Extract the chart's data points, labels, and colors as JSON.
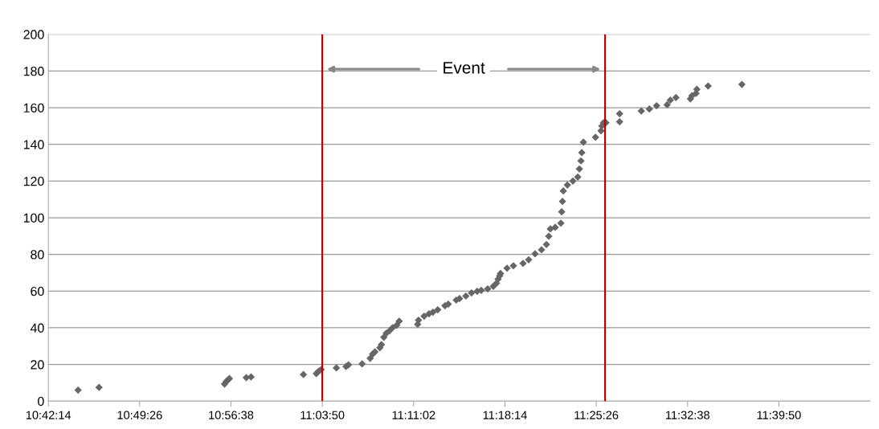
{
  "chart_data": {
    "type": "scatter",
    "marker": "diamond",
    "grid": "y",
    "legend": false,
    "xlim": [
      10.7039,
      11.7839
    ],
    "xticks": [
      {
        "value": 10.7039,
        "label": "10:42:14"
      },
      {
        "value": 10.8239,
        "label": "10:49:26"
      },
      {
        "value": 10.9439,
        "label": "10:56:38"
      },
      {
        "value": 11.0639,
        "label": "11:03:50"
      },
      {
        "value": 11.1839,
        "label": "11:11:02"
      },
      {
        "value": 11.3039,
        "label": "11:18:14"
      },
      {
        "value": 11.4239,
        "label": "11:25:26"
      },
      {
        "value": 11.5439,
        "label": "11:32:38"
      },
      {
        "value": 11.6639,
        "label": "11:39:50"
      }
    ],
    "ylim": [
      0,
      200
    ],
    "yticks": [
      0,
      20,
      40,
      60,
      80,
      100,
      120,
      140,
      160,
      180,
      200
    ],
    "ref_lines": [
      {
        "axis": "x",
        "value": 11.0639,
        "color": "#c00000"
      },
      {
        "axis": "x",
        "value": 11.4355,
        "color": "#c00000"
      }
    ],
    "annotations": [
      "Event"
    ],
    "series": [
      {
        "color": "#666666",
        "x": [
          10.743,
          10.7705,
          10.9354,
          10.9376,
          10.9397,
          10.9418,
          10.964,
          10.9703,
          11.0391,
          11.056,
          11.0591,
          11.0623,
          11.0824,
          11.0951,
          11.0983,
          11.1162,
          11.1268,
          11.13,
          11.1331,
          11.1395,
          11.1416,
          11.1448,
          11.148,
          11.1522,
          11.1564,
          11.1617,
          11.1649,
          11.1892,
          11.1903,
          11.1977,
          11.204,
          11.2093,
          11.2156,
          11.2251,
          11.2294,
          11.2399,
          11.2442,
          11.2526,
          11.26,
          11.2674,
          11.2727,
          11.2812,
          11.2886,
          11.2928,
          11.2949,
          11.297,
          11.2981,
          11.3066,
          11.315,
          11.3277,
          11.3351,
          11.3435,
          11.352,
          11.3584,
          11.3615,
          11.3636,
          11.37,
          11.3774,
          11.3785,
          11.3795,
          11.3806,
          11.3859,
          11.3932,
          11.3996,
          11.4017,
          11.4038,
          11.4049,
          11.407,
          11.4229,
          11.4302,
          11.4313,
          11.4334,
          11.4366,
          11.4546,
          11.4546,
          11.4831,
          11.4937,
          11.5032,
          11.517,
          11.5212,
          11.5286,
          11.5476,
          11.5497,
          11.555,
          11.5561,
          11.5709,
          11.6153
        ],
        "values": [
          6,
          7.5,
          9.3,
          10.6,
          11.5,
          12.3,
          12.8,
          13.2,
          14.5,
          15,
          16.3,
          17.2,
          18.1,
          18.9,
          19.8,
          20.3,
          23.3,
          25.6,
          26.9,
          29.1,
          30.8,
          34.8,
          37,
          38.3,
          40.1,
          41.4,
          43.6,
          41.9,
          44.1,
          46.3,
          47.6,
          48.5,
          49.8,
          52,
          52.9,
          55.1,
          55.9,
          57.3,
          59,
          59.9,
          60.4,
          61.2,
          62.6,
          64.3,
          66.5,
          68.3,
          69.6,
          72.5,
          73.8,
          75.1,
          77.1,
          80.3,
          82.5,
          85.4,
          89.9,
          93.9,
          94.8,
          97,
          103.2,
          108.9,
          114.6,
          117.8,
          120,
          122.2,
          126.6,
          131,
          135.5,
          141.2,
          143.9,
          147.4,
          150,
          151.8,
          151.8,
          156.7,
          152.3,
          158.2,
          159.3,
          161.1,
          161.6,
          164.1,
          165.5,
          164.8,
          166.5,
          167.8,
          170,
          171.8,
          172.7
        ]
      }
    ]
  }
}
